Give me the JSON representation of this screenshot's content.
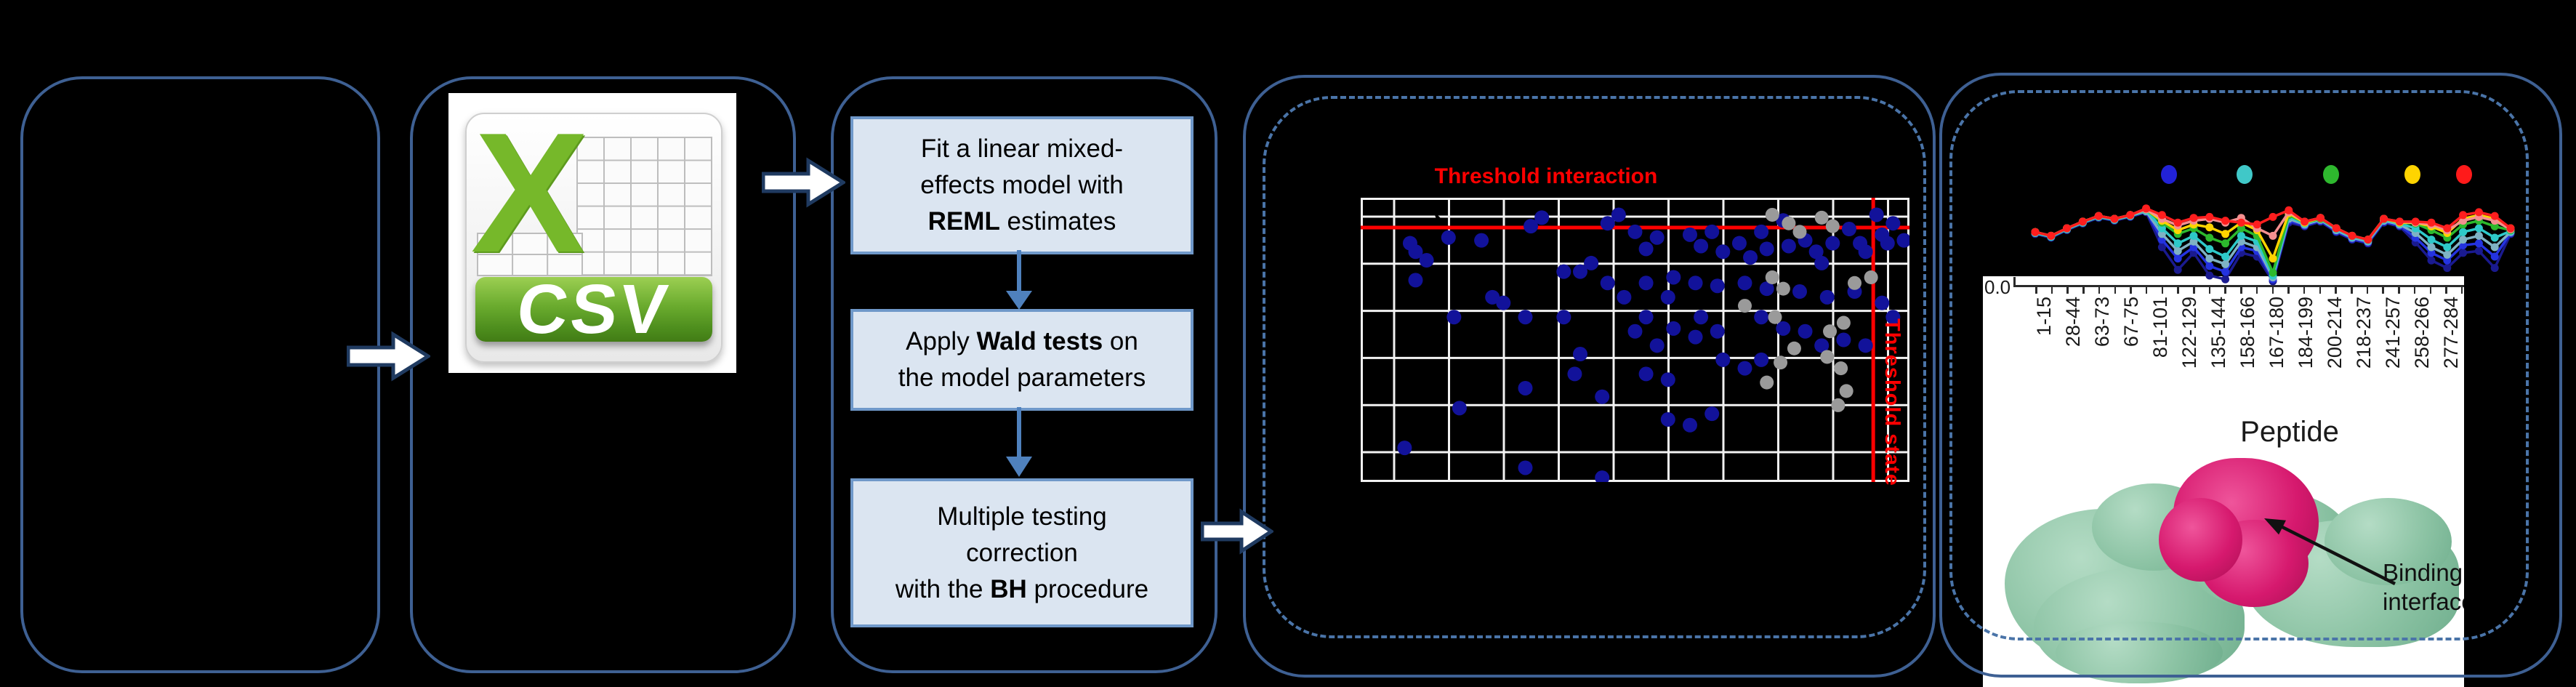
{
  "csv_icon": {
    "label": "CSV",
    "name": "excel-csv-file-icon"
  },
  "workflow": {
    "steps": [
      {
        "lines": [
          [
            {
              "t": "Fit a linear mixed-"
            }
          ],
          [
            {
              "t": "effects model with"
            }
          ],
          [
            {
              "t": "REML",
              "b": true
            },
            {
              "t": " estimates"
            }
          ]
        ]
      },
      {
        "lines": [
          [
            {
              "t": "Apply "
            },
            {
              "t": "Wald tests",
              "b": true
            },
            {
              "t": " on"
            }
          ],
          [
            {
              "t": "the model parameters"
            }
          ]
        ]
      },
      {
        "lines": [
          [
            {
              "t": "Multiple testing"
            }
          ],
          [
            {
              "t": "correction"
            }
          ],
          [
            {
              "t": "with the "
            },
            {
              "t": "BH",
              "b": true
            },
            {
              "t": " procedure"
            }
          ]
        ]
      }
    ]
  },
  "annotations": {
    "binding": "Binding interface"
  },
  "chart_data": [
    {
      "type": "scatter",
      "title": "Threshold interaction",
      "title_color": "#ff0000",
      "vline_label": "Threshold state",
      "plot_background": "#000000",
      "grid": {
        "on": true,
        "color": "#f2f2f2",
        "vlines": 10,
        "hlines": 6
      },
      "threshold_hline_frac_from_top": 0.105,
      "threshold_vline_frac_from_left": 0.934,
      "dot_colors": {
        "blue": "#12129a",
        "gray": "#9a9a9a"
      },
      "points_norm": {
        "blue": [
          [
            0.09,
            0.16
          ],
          [
            0.1,
            0.19
          ],
          [
            0.12,
            0.22
          ],
          [
            0.16,
            0.14
          ],
          [
            0.1,
            0.29
          ],
          [
            0.17,
            0.42
          ],
          [
            0.22,
            0.15
          ],
          [
            0.24,
            0.35
          ],
          [
            0.26,
            0.37
          ],
          [
            0.3,
            0.42
          ],
          [
            0.31,
            0.1
          ],
          [
            0.33,
            0.07
          ],
          [
            0.37,
            0.26
          ],
          [
            0.4,
            0.26
          ],
          [
            0.42,
            0.23
          ],
          [
            0.37,
            0.42
          ],
          [
            0.4,
            0.55
          ],
          [
            0.45,
            0.09
          ],
          [
            0.47,
            0.06
          ],
          [
            0.5,
            0.12
          ],
          [
            0.52,
            0.18
          ],
          [
            0.54,
            0.14
          ],
          [
            0.56,
            0.35
          ],
          [
            0.52,
            0.42
          ],
          [
            0.5,
            0.47
          ],
          [
            0.54,
            0.52
          ],
          [
            0.57,
            0.46
          ],
          [
            0.61,
            0.49
          ],
          [
            0.62,
            0.42
          ],
          [
            0.65,
            0.47
          ],
          [
            0.6,
            0.13
          ],
          [
            0.62,
            0.17
          ],
          [
            0.64,
            0.12
          ],
          [
            0.66,
            0.19
          ],
          [
            0.69,
            0.16
          ],
          [
            0.71,
            0.21
          ],
          [
            0.74,
            0.18
          ],
          [
            0.73,
            0.12
          ],
          [
            0.77,
            0.08
          ],
          [
            0.78,
            0.17
          ],
          [
            0.81,
            0.15
          ],
          [
            0.83,
            0.19
          ],
          [
            0.84,
            0.23
          ],
          [
            0.86,
            0.16
          ],
          [
            0.89,
            0.11
          ],
          [
            0.91,
            0.16
          ],
          [
            0.92,
            0.19
          ],
          [
            0.95,
            0.13
          ],
          [
            0.96,
            0.16
          ],
          [
            0.97,
            0.09
          ],
          [
            0.94,
            0.06
          ],
          [
            0.99,
            0.15
          ],
          [
            0.45,
            0.3
          ],
          [
            0.48,
            0.35
          ],
          [
            0.52,
            0.3
          ],
          [
            0.57,
            0.28
          ],
          [
            0.61,
            0.3
          ],
          [
            0.65,
            0.31
          ],
          [
            0.7,
            0.3
          ],
          [
            0.74,
            0.32
          ],
          [
            0.8,
            0.33
          ],
          [
            0.85,
            0.35
          ],
          [
            0.9,
            0.33
          ],
          [
            0.95,
            0.37
          ],
          [
            0.97,
            0.42
          ],
          [
            0.73,
            0.42
          ],
          [
            0.77,
            0.46
          ],
          [
            0.81,
            0.47
          ],
          [
            0.84,
            0.52
          ],
          [
            0.88,
            0.5
          ],
          [
            0.92,
            0.52
          ],
          [
            0.66,
            0.57
          ],
          [
            0.7,
            0.6
          ],
          [
            0.73,
            0.57
          ],
          [
            0.39,
            0.62
          ],
          [
            0.44,
            0.7
          ],
          [
            0.3,
            0.67
          ],
          [
            0.18,
            0.74
          ],
          [
            0.08,
            0.88
          ],
          [
            0.3,
            0.95
          ],
          [
            0.44,
            0.985
          ],
          [
            0.56,
            0.78
          ],
          [
            0.6,
            0.8
          ],
          [
            0.64,
            0.76
          ],
          [
            0.52,
            0.62
          ],
          [
            0.56,
            0.64
          ]
        ],
        "gray": [
          [
            0.75,
            0.06
          ],
          [
            0.78,
            0.09
          ],
          [
            0.8,
            0.12
          ],
          [
            0.84,
            0.07
          ],
          [
            0.86,
            0.1
          ],
          [
            0.75,
            0.28
          ],
          [
            0.77,
            0.32
          ],
          [
            0.79,
            0.53
          ],
          [
            0.755,
            0.42
          ],
          [
            0.88,
            0.44
          ],
          [
            0.855,
            0.47
          ],
          [
            0.85,
            0.56
          ],
          [
            0.875,
            0.6
          ],
          [
            0.885,
            0.68
          ],
          [
            0.87,
            0.73
          ],
          [
            0.74,
            0.65
          ],
          [
            0.9,
            0.3
          ],
          [
            0.93,
            0.28
          ],
          [
            0.765,
            0.58
          ],
          [
            0.7,
            0.38
          ]
        ]
      }
    },
    {
      "type": "line",
      "xlabel": "Peptide",
      "ytick_labels": [
        "0.0"
      ],
      "categories": [
        "1-15",
        "28-44",
        "63-73",
        "67-75",
        "81-101",
        "122-129",
        "135-144",
        "158-166",
        "167-180",
        "184-199",
        "200-214",
        "218-237",
        "241-257",
        "258-266",
        "277-284"
      ],
      "n_points": 31,
      "legend_dot_colors": [
        "#2222d6",
        "#40c8c8",
        "#2eb82e",
        "#ffd400",
        "#ff1a1a"
      ],
      "series": [
        {
          "name": "series-dark-navy",
          "color": "#1a1a8f",
          "values": [
            0.54,
            0.5,
            0.58,
            0.65,
            0.71,
            0.68,
            0.72,
            0.77,
            0.4,
            0.16,
            0.34,
            0.1,
            0.06,
            0.34,
            0.3,
            0.04,
            0.66,
            0.62,
            0.67,
            0.56,
            0.48,
            0.44,
            0.66,
            0.62,
            0.45,
            0.26,
            0.18,
            0.34,
            0.36,
            0.18,
            0.54
          ]
        },
        {
          "name": "series-blue",
          "color": "#2433e0",
          "values": [
            0.55,
            0.51,
            0.59,
            0.66,
            0.72,
            0.69,
            0.73,
            0.78,
            0.48,
            0.28,
            0.4,
            0.2,
            0.14,
            0.4,
            0.36,
            0.06,
            0.68,
            0.63,
            0.68,
            0.57,
            0.49,
            0.45,
            0.67,
            0.63,
            0.5,
            0.34,
            0.26,
            0.42,
            0.44,
            0.3,
            0.55
          ]
        },
        {
          "name": "series-cadet-blue",
          "color": "#7fb2c4",
          "values": [
            0.55,
            0.51,
            0.59,
            0.66,
            0.72,
            0.69,
            0.73,
            0.78,
            0.54,
            0.36,
            0.46,
            0.28,
            0.22,
            0.46,
            0.4,
            0.08,
            0.7,
            0.64,
            0.69,
            0.58,
            0.5,
            0.46,
            0.68,
            0.64,
            0.55,
            0.4,
            0.32,
            0.48,
            0.52,
            0.4,
            0.56
          ]
        },
        {
          "name": "series-cyan",
          "color": "#2ec9c9",
          "values": [
            0.55,
            0.51,
            0.59,
            0.66,
            0.72,
            0.69,
            0.73,
            0.79,
            0.6,
            0.44,
            0.52,
            0.38,
            0.3,
            0.52,
            0.46,
            0.1,
            0.72,
            0.65,
            0.7,
            0.59,
            0.51,
            0.47,
            0.69,
            0.65,
            0.6,
            0.48,
            0.4,
            0.56,
            0.6,
            0.5,
            0.57
          ]
        },
        {
          "name": "series-green",
          "color": "#2db92d",
          "values": [
            0.56,
            0.52,
            0.6,
            0.67,
            0.73,
            0.7,
            0.74,
            0.8,
            0.66,
            0.54,
            0.6,
            0.5,
            0.44,
            0.6,
            0.52,
            0.13,
            0.74,
            0.66,
            0.7,
            0.6,
            0.52,
            0.48,
            0.7,
            0.66,
            0.65,
            0.58,
            0.5,
            0.64,
            0.68,
            0.62,
            0.58
          ]
        },
        {
          "name": "series-yellow",
          "color": "#ffd400",
          "values": [
            0.56,
            0.52,
            0.6,
            0.67,
            0.73,
            0.7,
            0.74,
            0.8,
            0.68,
            0.58,
            0.64,
            0.61,
            0.54,
            0.66,
            0.58,
            0.28,
            0.76,
            0.66,
            0.71,
            0.6,
            0.52,
            0.48,
            0.7,
            0.66,
            0.66,
            0.62,
            0.55,
            0.7,
            0.74,
            0.7,
            0.6
          ]
        },
        {
          "name": "series-salmon",
          "color": "#f49090",
          "values": [
            0.56,
            0.52,
            0.6,
            0.67,
            0.73,
            0.7,
            0.74,
            0.8,
            0.7,
            0.63,
            0.68,
            0.7,
            0.66,
            0.71,
            0.6,
            0.52,
            0.77,
            0.67,
            0.71,
            0.6,
            0.52,
            0.48,
            0.7,
            0.67,
            0.66,
            0.64,
            0.58,
            0.68,
            0.72,
            0.68,
            0.59
          ]
        },
        {
          "name": "series-red",
          "color": "#ff1e1e",
          "values": [
            0.56,
            0.52,
            0.6,
            0.67,
            0.73,
            0.7,
            0.74,
            0.81,
            0.74,
            0.66,
            0.71,
            0.72,
            0.68,
            0.66,
            0.64,
            0.72,
            0.79,
            0.67,
            0.71,
            0.6,
            0.52,
            0.48,
            0.7,
            0.67,
            0.67,
            0.66,
            0.6,
            0.74,
            0.77,
            0.73,
            0.6
          ]
        }
      ]
    }
  ]
}
